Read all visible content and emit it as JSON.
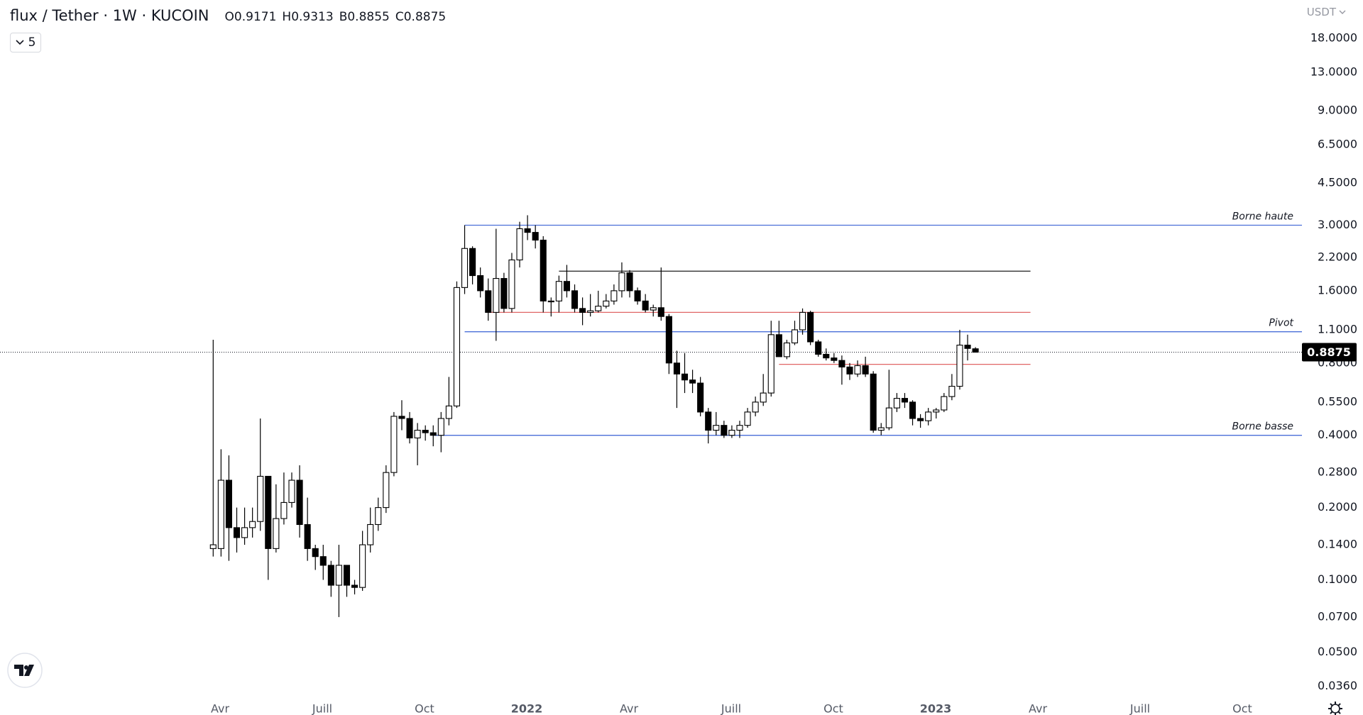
{
  "chart_data": {
    "type": "candlestick",
    "title": "flux / Tether · 1W · KUCOIN",
    "ohlc_labels": [
      "O",
      "H",
      "B",
      "C"
    ],
    "indicator_count": 5,
    "currency": "USDT",
    "log_scale": true,
    "up_color": "#ffffff",
    "down_color": "#000000",
    "wick_color": "#000000",
    "open": [
      0.135,
      0.135,
      0.26,
      0.165,
      0.15,
      0.165,
      0.175,
      0.27,
      0.135,
      0.18,
      0.21,
      0.26,
      0.17,
      0.135,
      0.125,
      0.115,
      0.095,
      0.115,
      0.095,
      0.093,
      0.14,
      0.17,
      0.2,
      0.28,
      0.48,
      0.47,
      0.39,
      0.42,
      0.41,
      0.4,
      0.47,
      0.53,
      1.65,
      2.4,
      1.85,
      1.6,
      1.3,
      1.8,
      1.35,
      2.15,
      2.9,
      2.8,
      2.6,
      1.45,
      1.45,
      1.75,
      1.6,
      1.35,
      1.3,
      1.32,
      1.38,
      1.45,
      1.6,
      1.9,
      1.6,
      1.45,
      1.33,
      1.36,
      1.25,
      0.8,
      0.72,
      0.68,
      0.66,
      0.5,
      0.42,
      0.44,
      0.4,
      0.42,
      0.44,
      0.5,
      0.55,
      0.6,
      1.05,
      0.85,
      0.97,
      1.1,
      1.3,
      0.98,
      0.87,
      0.84,
      0.82,
      0.77,
      0.72,
      0.78,
      0.72,
      0.42,
      0.43,
      0.52,
      0.57,
      0.55,
      0.47,
      0.46,
      0.5,
      0.51,
      0.58,
      0.64,
      0.95,
      0.9171
    ],
    "high": [
      1.0,
      0.35,
      0.33,
      0.2,
      0.2,
      0.2,
      0.47,
      0.27,
      0.25,
      0.28,
      0.28,
      0.3,
      0.22,
      0.14,
      0.14,
      0.12,
      0.14,
      0.115,
      0.1,
      0.16,
      0.2,
      0.22,
      0.3,
      0.5,
      0.56,
      0.5,
      0.45,
      0.44,
      0.44,
      0.5,
      0.7,
      1.75,
      3.0,
      2.45,
      2.0,
      1.8,
      2.9,
      1.9,
      2.3,
      3.1,
      3.3,
      3.0,
      2.7,
      1.5,
      1.85,
      2.05,
      1.7,
      1.5,
      1.55,
      1.6,
      1.55,
      1.7,
      2.1,
      1.95,
      1.65,
      1.55,
      1.4,
      2.0,
      1.28,
      0.9,
      0.88,
      0.75,
      0.7,
      0.52,
      0.5,
      0.46,
      0.44,
      0.46,
      0.52,
      0.58,
      0.72,
      1.2,
      1.2,
      1.0,
      1.2,
      1.35,
      1.32,
      1.0,
      0.92,
      0.88,
      0.86,
      0.8,
      0.82,
      0.85,
      0.74,
      0.45,
      0.75,
      0.6,
      0.6,
      0.56,
      0.49,
      0.52,
      0.52,
      0.6,
      0.72,
      1.1,
      1.05,
      0.9313
    ],
    "low": [
      0.125,
      0.125,
      0.12,
      0.13,
      0.14,
      0.15,
      0.16,
      0.1,
      0.13,
      0.17,
      0.2,
      0.15,
      0.12,
      0.11,
      0.1,
      0.085,
      0.07,
      0.085,
      0.087,
      0.09,
      0.13,
      0.16,
      0.19,
      0.27,
      0.42,
      0.37,
      0.3,
      0.38,
      0.36,
      0.34,
      0.44,
      0.52,
      1.55,
      1.7,
      1.5,
      1.2,
      0.99,
      1.3,
      1.3,
      2.0,
      2.6,
      2.4,
      1.3,
      1.25,
      1.3,
      1.5,
      1.3,
      1.15,
      1.25,
      1.3,
      1.35,
      1.4,
      1.5,
      1.5,
      1.4,
      1.3,
      1.25,
      1.2,
      0.72,
      0.52,
      0.6,
      0.6,
      0.48,
      0.37,
      0.4,
      0.39,
      0.39,
      0.39,
      0.43,
      0.48,
      0.53,
      0.58,
      0.85,
      0.83,
      0.95,
      1.05,
      0.95,
      0.85,
      0.82,
      0.8,
      0.65,
      0.68,
      0.7,
      0.7,
      0.41,
      0.4,
      0.42,
      0.5,
      0.52,
      0.44,
      0.43,
      0.44,
      0.47,
      0.5,
      0.56,
      0.62,
      0.82,
      0.8855
    ],
    "close": [
      0.14,
      0.26,
      0.165,
      0.15,
      0.165,
      0.175,
      0.27,
      0.135,
      0.18,
      0.21,
      0.26,
      0.17,
      0.135,
      0.125,
      0.115,
      0.095,
      0.115,
      0.095,
      0.093,
      0.14,
      0.17,
      0.2,
      0.28,
      0.48,
      0.47,
      0.39,
      0.42,
      0.41,
      0.4,
      0.47,
      0.53,
      1.65,
      2.4,
      1.85,
      1.6,
      1.3,
      1.8,
      1.35,
      2.15,
      2.9,
      2.8,
      2.6,
      1.45,
      1.45,
      1.75,
      1.6,
      1.35,
      1.3,
      1.32,
      1.38,
      1.45,
      1.6,
      1.9,
      1.6,
      1.45,
      1.33,
      1.36,
      1.25,
      0.8,
      0.72,
      0.68,
      0.66,
      0.5,
      0.42,
      0.44,
      0.4,
      0.42,
      0.44,
      0.5,
      0.55,
      0.6,
      1.05,
      0.85,
      0.97,
      1.1,
      1.3,
      0.98,
      0.87,
      0.84,
      0.82,
      0.77,
      0.72,
      0.78,
      0.72,
      0.42,
      0.43,
      0.52,
      0.57,
      0.55,
      0.47,
      0.46,
      0.5,
      0.51,
      0.58,
      0.64,
      0.95,
      0.92,
      0.8875
    ],
    "ylim": [
      0.032,
      26
    ],
    "yticks": [
      {
        "value": 18,
        "label": "18.0000"
      },
      {
        "value": 13,
        "label": "13.0000"
      },
      {
        "value": 9,
        "label": "9.0000"
      },
      {
        "value": 6.5,
        "label": "6.5000"
      },
      {
        "value": 4.5,
        "label": "4.5000"
      },
      {
        "value": 3,
        "label": "3.0000"
      },
      {
        "value": 2.2,
        "label": "2.2000"
      },
      {
        "value": 1.6,
        "label": "1.6000"
      },
      {
        "value": 1.1,
        "label": "1.1000"
      },
      {
        "value": 0.8,
        "label": "0.8000"
      },
      {
        "value": 0.55,
        "label": "0.5500"
      },
      {
        "value": 0.4,
        "label": "0.4000"
      },
      {
        "value": 0.28,
        "label": "0.2800"
      },
      {
        "value": 0.2,
        "label": "0.2000"
      },
      {
        "value": 0.14,
        "label": "0.1400"
      },
      {
        "value": 0.1,
        "label": "0.1000"
      },
      {
        "value": 0.07,
        "label": "0.0700"
      },
      {
        "value": 0.05,
        "label": "0.0500"
      },
      {
        "value": 0.036,
        "label": "0.0360"
      }
    ],
    "xticks": [
      "Avr",
      "Juill",
      "Oct",
      "2022",
      "Avr",
      "Juill",
      "Oct",
      "2023",
      "Avr",
      "Juill",
      "Oct"
    ],
    "hlines": [
      {
        "value": 3.0,
        "color": "#4a6fd8",
        "label": "Borne haute"
      },
      {
        "value": 1.93,
        "color": "#333333"
      },
      {
        "value": 1.3,
        "color": "#e06666"
      },
      {
        "value": 1.08,
        "color": "#4a6fd8",
        "label": "Pivot"
      },
      {
        "value": 0.79,
        "color": "#e06666"
      },
      {
        "value": 0.4,
        "color": "#4a6fd8",
        "label": "Borne basse"
      }
    ],
    "last_price_color": "#000000"
  }
}
